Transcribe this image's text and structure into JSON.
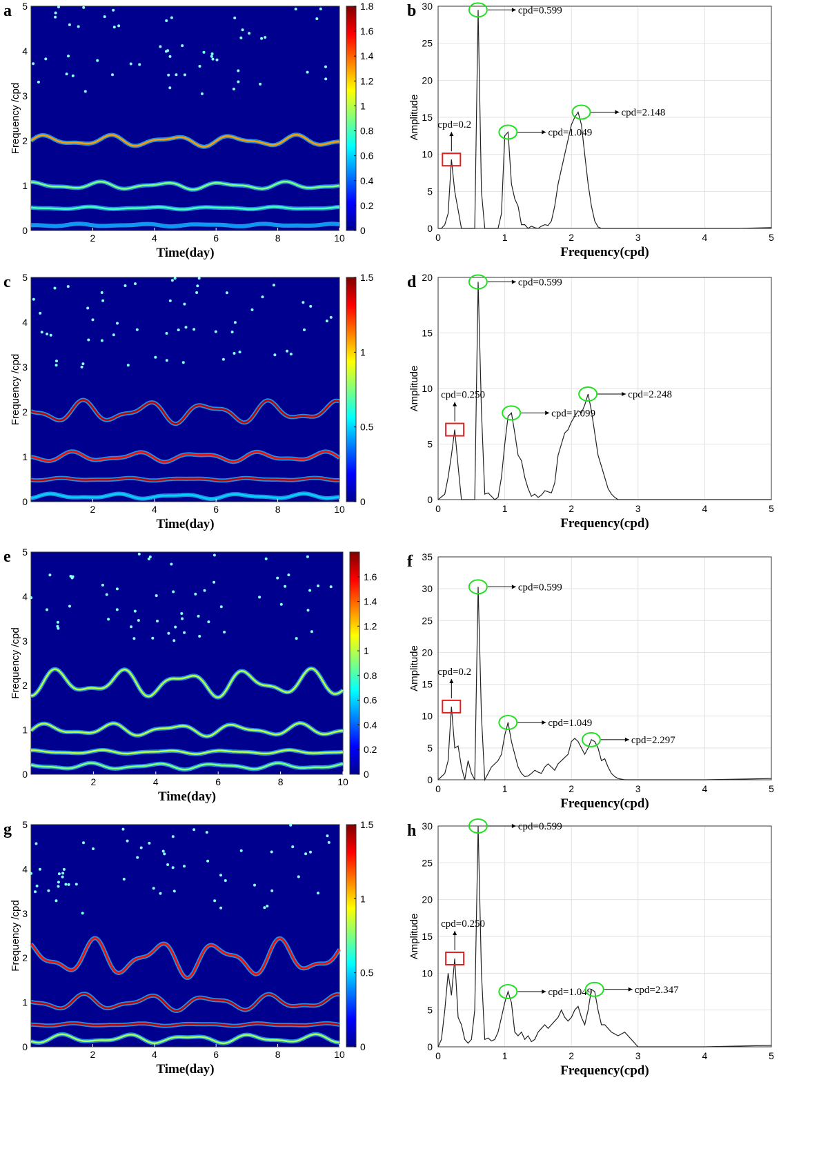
{
  "chart_data": [
    {
      "panel": "a",
      "type": "heatmap",
      "xlabel": "Time(day)",
      "ylabel": "Frequency /cpd",
      "xlim": [
        0,
        10
      ],
      "ylim": [
        0,
        5
      ],
      "xticks": [
        "2",
        "4",
        "6",
        "8",
        "10"
      ],
      "yticks": [
        "0",
        "1",
        "2",
        "3",
        "4",
        "5"
      ],
      "colorbar": {
        "min": 0,
        "max": 1.8,
        "ticks": [
          "0",
          "0.2",
          "0.4",
          "0.6",
          "0.8",
          "1",
          "1.2",
          "1.4",
          "1.6",
          "1.8"
        ]
      },
      "ridges": [
        {
          "name": "2 cpd band",
          "center": 2.0,
          "amp": 0.09,
          "intensity": 1.3
        },
        {
          "name": "1 cpd band",
          "center": 1.0,
          "amp": 0.06,
          "intensity": 0.9
        },
        {
          "name": "0.5 cpd band",
          "center": 0.5,
          "amp": 0.02,
          "intensity": 0.8
        },
        {
          "name": "low band",
          "center": 0.12,
          "amp": 0.02,
          "intensity": 0.5
        }
      ]
    },
    {
      "panel": "b",
      "type": "line",
      "xlabel": "Frequency(cpd)",
      "ylabel": "Amplitude",
      "xlim": [
        0,
        5
      ],
      "ylim": [
        0,
        30
      ],
      "xticks": [
        "0",
        "1",
        "2",
        "3",
        "4",
        "5"
      ],
      "yticks": [
        "0",
        "5",
        "10",
        "15",
        "20",
        "25",
        "30"
      ],
      "series": [
        {
          "name": "spectrum",
          "x": [
            0,
            0.05,
            0.1,
            0.15,
            0.2,
            0.25,
            0.3,
            0.35,
            0.4,
            0.45,
            0.5,
            0.55,
            0.6,
            0.65,
            0.7,
            0.75,
            0.8,
            0.85,
            0.9,
            0.95,
            1.0,
            1.05,
            1.1,
            1.15,
            1.2,
            1.25,
            1.3,
            1.35,
            1.4,
            1.45,
            1.5,
            1.55,
            1.6,
            1.65,
            1.7,
            1.75,
            1.8,
            1.85,
            1.9,
            1.95,
            2.0,
            2.05,
            2.1,
            2.15,
            2.2,
            2.25,
            2.3,
            2.35,
            2.4,
            2.45,
            2.5,
            3.0,
            3.5,
            4.0,
            4.5,
            5.0
          ],
          "y": [
            0,
            0,
            0.5,
            2,
            9.3,
            5,
            2.5,
            0,
            0,
            0,
            0,
            0,
            29.5,
            5,
            0,
            0,
            0,
            0,
            0,
            2,
            12.5,
            13,
            6,
            4,
            3,
            0.5,
            0.5,
            0,
            0.3,
            0.1,
            0,
            0.3,
            0.5,
            0.4,
            1,
            3,
            6,
            8,
            10,
            12,
            14,
            15,
            15.7,
            14,
            10,
            6,
            3,
            1,
            0.2,
            0,
            0,
            0,
            0,
            0,
            0,
            0.1
          ]
        }
      ],
      "annotations": [
        {
          "text": "cpd=0.599",
          "x": 0.599,
          "y": 29.5,
          "marker": "circle"
        },
        {
          "text": "cpd=1.049",
          "x": 1.049,
          "y": 13,
          "marker": "circle"
        },
        {
          "text": "cpd=2.148",
          "x": 2.148,
          "y": 15.7,
          "marker": "circle"
        },
        {
          "text": "cpd=0.2",
          "x": 0.2,
          "y": 9.3,
          "marker": "box"
        }
      ]
    },
    {
      "panel": "c",
      "type": "heatmap",
      "xlabel": "Time(day)",
      "ylabel": "Frequency /cpd",
      "xlim": [
        0,
        10
      ],
      "ylim": [
        0,
        5
      ],
      "xticks": [
        "2",
        "4",
        "6",
        "8",
        "10"
      ],
      "yticks": [
        "0",
        "1",
        "2",
        "3",
        "4",
        "5"
      ],
      "colorbar": {
        "min": 0,
        "max": 1.5,
        "ticks": [
          "0",
          "0.5",
          "1",
          "1.5"
        ]
      },
      "ridges": [
        {
          "name": "2 cpd band",
          "center": 2.0,
          "amp": 0.18,
          "intensity": 1.4
        },
        {
          "name": "1 cpd band",
          "center": 1.0,
          "amp": 0.08,
          "intensity": 1.3
        },
        {
          "name": "0.5 cpd band",
          "center": 0.5,
          "amp": 0.02,
          "intensity": 1.4
        },
        {
          "name": "low band",
          "center": 0.12,
          "amp": 0.04,
          "intensity": 0.5
        }
      ]
    },
    {
      "panel": "d",
      "type": "line",
      "xlabel": "Frequency(cpd)",
      "ylabel": "Amplitude",
      "xlim": [
        0,
        5
      ],
      "ylim": [
        0,
        20
      ],
      "xticks": [
        "0",
        "1",
        "2",
        "3",
        "4",
        "5"
      ],
      "yticks": [
        "0",
        "5",
        "10",
        "15",
        "20"
      ],
      "series": [
        {
          "name": "spectrum",
          "x": [
            0,
            0.1,
            0.15,
            0.2,
            0.25,
            0.3,
            0.35,
            0.4,
            0.45,
            0.5,
            0.55,
            0.6,
            0.65,
            0.7,
            0.75,
            0.8,
            0.85,
            0.9,
            0.95,
            1.0,
            1.05,
            1.1,
            1.15,
            1.2,
            1.25,
            1.3,
            1.35,
            1.4,
            1.45,
            1.5,
            1.55,
            1.6,
            1.65,
            1.7,
            1.75,
            1.8,
            1.85,
            1.9,
            1.95,
            2.0,
            2.05,
            2.1,
            2.15,
            2.2,
            2.25,
            2.3,
            2.35,
            2.4,
            2.45,
            2.5,
            2.55,
            2.6,
            2.65,
            2.7,
            3.0,
            4.0,
            5.0
          ],
          "y": [
            0,
            0.5,
            2,
            4,
            6.3,
            3,
            0,
            0,
            0,
            0,
            0,
            19.6,
            8,
            0.5,
            0.6,
            0.3,
            0,
            0.2,
            2,
            5,
            7.5,
            7.8,
            6,
            4,
            3.5,
            2,
            1,
            0.3,
            0.5,
            0.2,
            0.4,
            0.8,
            0.7,
            0.6,
            1.5,
            4,
            5,
            6,
            6.3,
            7,
            7.5,
            8,
            7.8,
            8.5,
            9.5,
            8,
            6,
            4,
            3,
            2,
            1,
            0.5,
            0.2,
            0,
            0,
            0,
            0
          ]
        }
      ],
      "annotations": [
        {
          "text": "cpd=0.599",
          "x": 0.599,
          "y": 19.6,
          "marker": "circle"
        },
        {
          "text": "cpd=0.250",
          "x": 0.25,
          "y": 6.3,
          "marker": "box"
        },
        {
          "text": "cpd=1.099",
          "x": 1.099,
          "y": 7.8,
          "marker": "circle"
        },
        {
          "text": "cpd=2.248",
          "x": 2.248,
          "y": 9.5,
          "marker": "circle"
        }
      ]
    },
    {
      "panel": "e",
      "type": "heatmap",
      "xlabel": "Time(day)",
      "ylabel": "Frequency /cpd",
      "xlim": [
        0,
        10
      ],
      "ylim": [
        0,
        5
      ],
      "xticks": [
        "2",
        "4",
        "6",
        "8",
        "10"
      ],
      "yticks": [
        "0",
        "1",
        "2",
        "3",
        "4",
        "5"
      ],
      "colorbar": {
        "min": 0,
        "max": 1.8,
        "ticks": [
          "0",
          "0.2",
          "0.4",
          "0.6",
          "0.8",
          "1",
          "1.2",
          "1.4",
          "1.6"
        ]
      },
      "ridges": [
        {
          "name": "2 cpd band",
          "center": 2.05,
          "amp": 0.22,
          "intensity": 1.0
        },
        {
          "name": "1 cpd band",
          "center": 1.0,
          "amp": 0.1,
          "intensity": 1.0
        },
        {
          "name": "0.5 cpd band",
          "center": 0.5,
          "amp": 0.03,
          "intensity": 1.0
        },
        {
          "name": "low band",
          "center": 0.18,
          "amp": 0.05,
          "intensity": 0.9
        }
      ]
    },
    {
      "panel": "f",
      "type": "line",
      "xlabel": "Frequency(cpd)",
      "ylabel": "Amplitude",
      "xlim": [
        0,
        5
      ],
      "ylim": [
        0,
        35
      ],
      "xticks": [
        "0",
        "1",
        "2",
        "3",
        "4",
        "5"
      ],
      "yticks": [
        "0",
        "5",
        "10",
        "15",
        "20",
        "25",
        "30",
        "35"
      ],
      "series": [
        {
          "name": "spectrum",
          "x": [
            0,
            0.05,
            0.1,
            0.15,
            0.2,
            0.25,
            0.3,
            0.35,
            0.4,
            0.45,
            0.5,
            0.55,
            0.6,
            0.65,
            0.7,
            0.75,
            0.8,
            0.85,
            0.9,
            0.95,
            1.0,
            1.05,
            1.1,
            1.15,
            1.2,
            1.25,
            1.3,
            1.35,
            1.4,
            1.45,
            1.5,
            1.55,
            1.6,
            1.65,
            1.7,
            1.75,
            1.8,
            1.85,
            1.9,
            1.95,
            2.0,
            2.05,
            2.1,
            2.15,
            2.2,
            2.25,
            2.3,
            2.35,
            2.4,
            2.45,
            2.5,
            2.55,
            2.6,
            2.65,
            2.7,
            2.75,
            2.8,
            3.0,
            4.0,
            5.0
          ],
          "y": [
            0,
            0.5,
            1,
            3,
            11.5,
            5,
            5.3,
            2,
            0,
            3,
            1,
            0,
            30.3,
            10,
            0,
            1,
            2,
            2.5,
            3,
            4,
            7,
            9,
            6,
            4,
            2,
            1,
            0.5,
            0.6,
            1,
            1.5,
            1.2,
            1,
            2,
            2.5,
            2,
            1.5,
            2.5,
            3,
            3.5,
            4,
            6,
            6.5,
            6,
            5,
            4,
            5,
            6.3,
            6,
            5,
            3,
            3.3,
            2,
            1,
            0.5,
            0.2,
            0.1,
            0,
            0,
            0,
            0.2
          ]
        }
      ],
      "annotations": [
        {
          "text": "cpd=0.599",
          "x": 0.599,
          "y": 30.3,
          "marker": "circle"
        },
        {
          "text": "cpd=0.2",
          "x": 0.2,
          "y": 11.5,
          "marker": "box"
        },
        {
          "text": "cpd=1.049",
          "x": 1.049,
          "y": 9,
          "marker": "circle"
        },
        {
          "text": "cpd=2.297",
          "x": 2.297,
          "y": 6.3,
          "marker": "circle"
        }
      ]
    },
    {
      "panel": "g",
      "type": "heatmap",
      "xlabel": "Time(day)",
      "ylabel": "Frequency /cpd",
      "xlim": [
        0,
        10
      ],
      "ylim": [
        0,
        5
      ],
      "xticks": [
        "2",
        "4",
        "6",
        "8",
        "10"
      ],
      "yticks": [
        "0",
        "1",
        "2",
        "3",
        "4",
        "5"
      ],
      "colorbar": {
        "min": 0,
        "max": 1.5,
        "ticks": [
          "0",
          "0.5",
          "1",
          "1.5"
        ]
      },
      "ridges": [
        {
          "name": "2 cpd band",
          "center": 2.0,
          "amp": 0.3,
          "intensity": 1.3
        },
        {
          "name": "1 cpd band",
          "center": 1.0,
          "amp": 0.13,
          "intensity": 1.4
        },
        {
          "name": "0.5 cpd band",
          "center": 0.5,
          "amp": 0.02,
          "intensity": 1.4
        },
        {
          "name": "low band",
          "center": 0.18,
          "amp": 0.07,
          "intensity": 0.8
        }
      ]
    },
    {
      "panel": "h",
      "type": "line",
      "xlabel": "Frequency(cpd)",
      "ylabel": "Amplitude",
      "xlim": [
        0,
        5
      ],
      "ylim": [
        0,
        30
      ],
      "xticks": [
        "0",
        "1",
        "2",
        "3",
        "4",
        "5"
      ],
      "yticks": [
        "0",
        "5",
        "10",
        "15",
        "20",
        "25",
        "30"
      ],
      "series": [
        {
          "name": "spectrum",
          "x": [
            0,
            0.05,
            0.1,
            0.15,
            0.2,
            0.25,
            0.3,
            0.35,
            0.4,
            0.45,
            0.5,
            0.55,
            0.6,
            0.65,
            0.7,
            0.75,
            0.8,
            0.85,
            0.9,
            0.95,
            1.0,
            1.05,
            1.1,
            1.15,
            1.2,
            1.25,
            1.3,
            1.35,
            1.4,
            1.45,
            1.5,
            1.55,
            1.6,
            1.65,
            1.7,
            1.75,
            1.8,
            1.85,
            1.9,
            1.95,
            2.0,
            2.05,
            2.1,
            2.15,
            2.2,
            2.25,
            2.3,
            2.35,
            2.4,
            2.45,
            2.5,
            2.6,
            2.7,
            2.8,
            2.9,
            3.0,
            4.0,
            5.0
          ],
          "y": [
            0,
            1,
            5,
            10,
            7,
            12,
            4,
            3,
            1,
            0.5,
            1,
            5,
            30,
            10,
            1,
            1.2,
            0.8,
            1,
            2,
            4,
            6,
            7.5,
            6,
            2,
            1.5,
            2,
            1,
            1.5,
            0.7,
            1,
            2,
            2.5,
            3,
            2.5,
            3,
            3.5,
            4,
            5,
            4,
            3.5,
            4,
            5,
            5.5,
            4,
            3,
            5,
            7.8,
            7.5,
            5,
            3,
            3,
            2,
            1.5,
            2,
            1,
            0,
            0,
            0.2
          ]
        }
      ],
      "annotations": [
        {
          "text": "cpd=0.599",
          "x": 0.599,
          "y": 30,
          "marker": "circle"
        },
        {
          "text": "cpd=0.250",
          "x": 0.25,
          "y": 12,
          "marker": "box"
        },
        {
          "text": "cpd=1.049",
          "x": 1.049,
          "y": 7.5,
          "marker": "circle"
        },
        {
          "text": "cpd=2.347",
          "x": 2.347,
          "y": 7.8,
          "marker": "circle"
        }
      ]
    }
  ]
}
